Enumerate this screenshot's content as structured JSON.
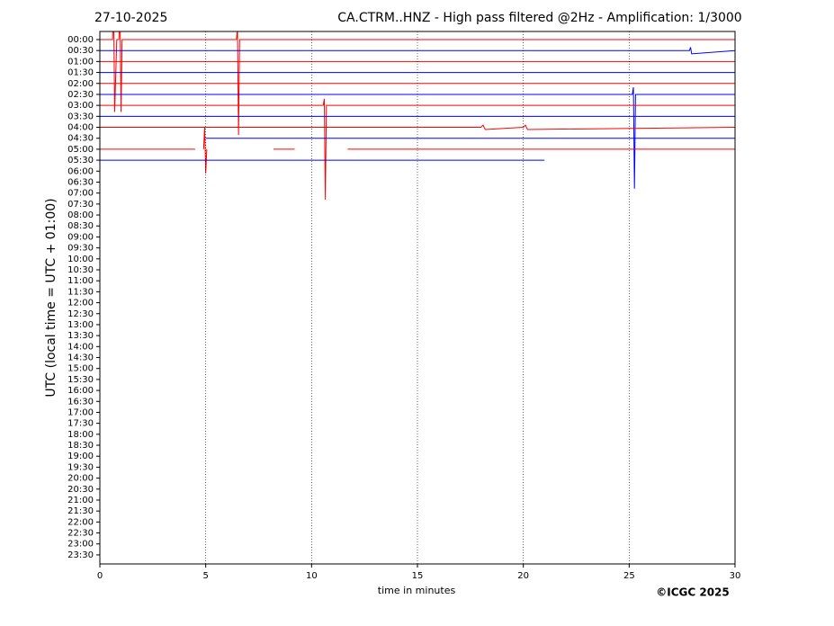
{
  "chart_data": {
    "type": "helicorder",
    "date": "27-10-2025",
    "title": "CA.CTRM..HNZ - High pass filtered @2Hz - Amplification: 1/3000",
    "ylabel": "UTC (local time = UTC + 01:00)",
    "xlabel": "time in minutes",
    "credit": "©ICGC 2025",
    "xlim": [
      0,
      30
    ],
    "xticks": [
      0,
      5,
      10,
      15,
      20,
      25,
      30
    ],
    "grid": true,
    "categories": [
      "00:00",
      "00:30",
      "01:00",
      "01:30",
      "02:00",
      "02:30",
      "03:00",
      "03:30",
      "04:00",
      "04:30",
      "05:00",
      "05:30",
      "06:00",
      "06:30",
      "07:00",
      "07:30",
      "08:00",
      "08:30",
      "09:00",
      "09:30",
      "10:00",
      "10:30",
      "11:00",
      "11:30",
      "12:00",
      "12:30",
      "13:00",
      "13:30",
      "14:00",
      "14:30",
      "15:00",
      "15:30",
      "16:00",
      "16:30",
      "17:00",
      "17:30",
      "18:00",
      "18:30",
      "19:00",
      "19:30",
      "20:00",
      "20:30",
      "21:00",
      "21:30",
      "22:00",
      "22:30",
      "23:00",
      "23:30"
    ],
    "series": [
      {
        "color": "#ff0000",
        "x": [
          0,
          0.6,
          0.65,
          0.7,
          0.8,
          0.9,
          0.95,
          1.0,
          1.05,
          6.45,
          6.5,
          6.55,
          6.6,
          30
        ],
        "values": [
          0,
          0,
          3,
          -6.6,
          0,
          0,
          3,
          -6.6,
          0,
          0,
          1,
          -8.7,
          0,
          0
        ]
      },
      {
        "color": "#0000ff",
        "x": [
          0,
          27.85,
          27.9,
          27.95,
          30
        ],
        "values": [
          0,
          0,
          0.3,
          -0.3,
          0
        ]
      },
      {
        "color": "#ff0000",
        "x": [
          0,
          30
        ],
        "values": [
          0,
          0
        ]
      },
      {
        "color": "#0000ff",
        "x": [
          0,
          30
        ],
        "values": [
          0,
          0
        ]
      },
      {
        "color": "#ff0000",
        "x": [
          0,
          30
        ],
        "values": [
          0,
          0
        ]
      },
      {
        "color": "#0000ff",
        "x": [
          0,
          25.15,
          25.2,
          25.25,
          25.3,
          30
        ],
        "values": [
          0,
          0,
          0.65,
          -8.6,
          0,
          0
        ]
      },
      {
        "color": "#ff0000",
        "x": [
          0,
          10.55,
          10.6,
          10.65,
          10.7,
          30
        ],
        "values": [
          0,
          0,
          0.6,
          -8.6,
          0,
          0
        ]
      },
      {
        "color": "#0000ff",
        "x": [
          0,
          30
        ],
        "values": [
          0,
          0
        ]
      },
      {
        "color": "#ff0000",
        "x": [
          0,
          18.0,
          18.1,
          18.2,
          20.0,
          20.1,
          20.2,
          30
        ],
        "values": [
          0,
          0,
          0.2,
          -0.2,
          0,
          0.2,
          -0.2,
          0
        ]
      },
      {
        "color": "#0000ff",
        "x": [
          5.0,
          30
        ],
        "values": [
          0,
          0
        ]
      },
      {
        "color": "#ff0000",
        "x": [
          0,
          4.5,
          4.7,
          4.9,
          4.95,
          5.0,
          5.05,
          6,
          8.2,
          9.2,
          10,
          11.7,
          30
        ],
        "values": [
          0,
          0,
          null,
          0,
          2,
          -2.2,
          0,
          null,
          0,
          0,
          null,
          0,
          0
        ]
      },
      {
        "color": "#0000ff",
        "x": [
          0,
          21
        ],
        "values": [
          0,
          0
        ]
      }
    ]
  }
}
